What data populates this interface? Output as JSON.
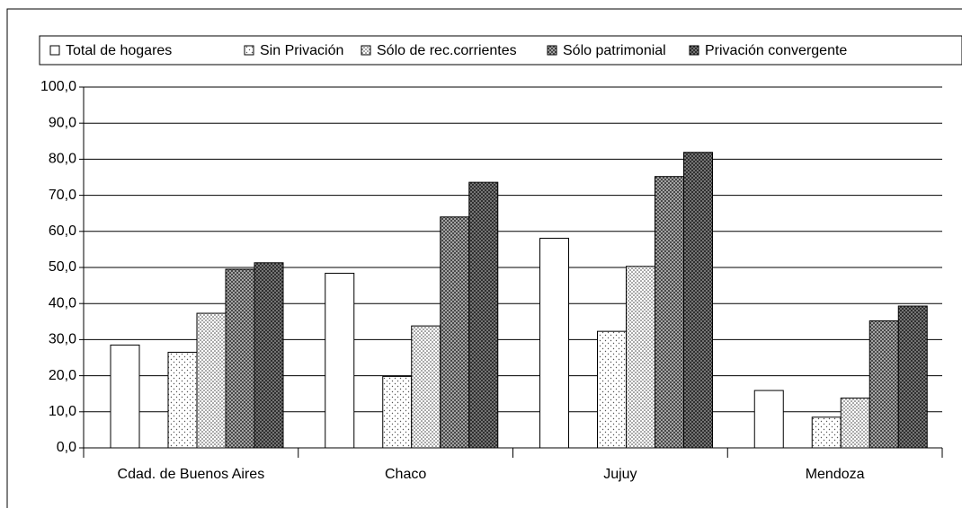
{
  "chart_data": {
    "type": "bar",
    "categories": [
      "Cdad. de Buenos Aires",
      "Chaco",
      "Jujuy",
      "Mendoza"
    ],
    "series": [
      {
        "name": "Total de hogares",
        "color": "#ffffff",
        "values": [
          28.5,
          48.4,
          58.1,
          15.9
        ]
      },
      {
        "name": "Sin Privación",
        "color": "#f2f2f2",
        "values": [
          26.5,
          19.8,
          32.3,
          8.5
        ]
      },
      {
        "name": "Sólo de rec.corrientes",
        "color": "#dcdcdc",
        "values": [
          37.3,
          33.8,
          50.3,
          13.8
        ]
      },
      {
        "name": "Sólo patrimonial",
        "color": "#a8a8a8",
        "values": [
          49.5,
          64.0,
          75.2,
          35.2
        ]
      },
      {
        "name": "Privación convergente",
        "color": "#8a8a8a",
        "values": [
          51.3,
          73.6,
          81.9,
          39.3
        ]
      }
    ],
    "ylim": [
      0,
      100
    ],
    "yticks": [
      {
        "value": 0,
        "label": "0,0"
      },
      {
        "value": 10,
        "label": "10,0"
      },
      {
        "value": 20,
        "label": "20,0"
      },
      {
        "value": 30,
        "label": "30,0"
      },
      {
        "value": 40,
        "label": "40,0"
      },
      {
        "value": 50,
        "label": "50,0"
      },
      {
        "value": 60,
        "label": "60,0"
      },
      {
        "value": 70,
        "label": "70,0"
      },
      {
        "value": 80,
        "label": "80,0"
      },
      {
        "value": 90,
        "label": "90,0"
      },
      {
        "value": 100,
        "label": "100,0"
      }
    ],
    "grid": true
  }
}
